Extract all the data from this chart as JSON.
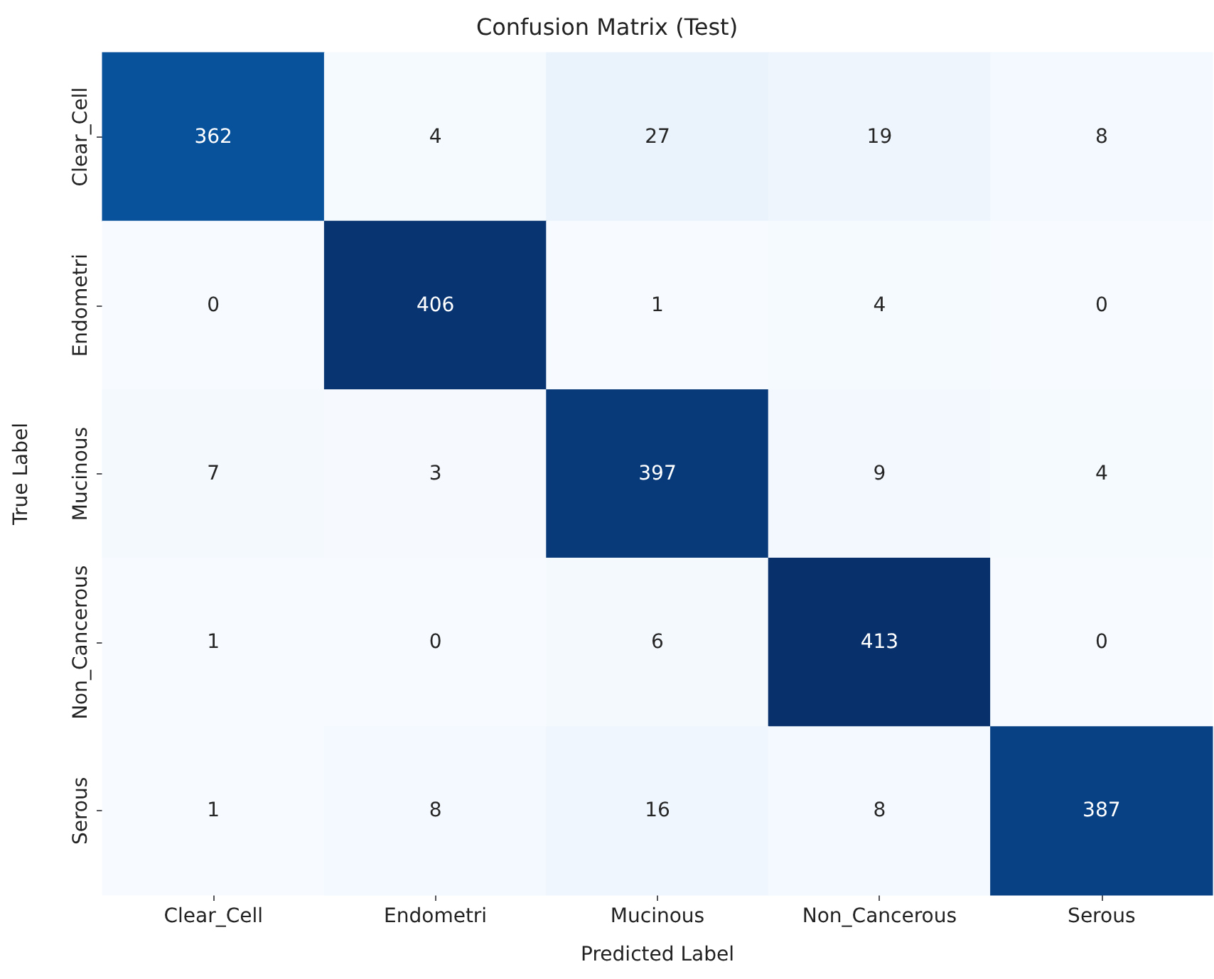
{
  "chart_data": {
    "type": "heatmap",
    "title": "Confusion Matrix (Test)",
    "xlabel": "Predicted Label",
    "ylabel": "True Label",
    "categories": [
      "Clear_Cell",
      "Endometri",
      "Mucinous",
      "Non_Cancerous",
      "Serous"
    ],
    "y_categories": [
      "Clear_Cell",
      "Endometri",
      "Mucinous",
      "Non_Cancerous",
      "Serous"
    ],
    "cells": [
      [
        362,
        4,
        27,
        19,
        8
      ],
      [
        0,
        406,
        1,
        4,
        0
      ],
      [
        7,
        3,
        397,
        9,
        4
      ],
      [
        1,
        0,
        6,
        413,
        0
      ],
      [
        1,
        8,
        16,
        8,
        387
      ]
    ],
    "data_labels": true
  }
}
